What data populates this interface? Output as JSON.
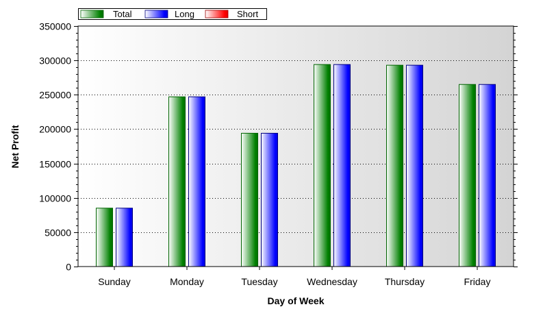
{
  "chart_data": {
    "type": "bar",
    "title": "",
    "xlabel": "Day of Week",
    "ylabel": "Net Profit",
    "categories": [
      "Sunday",
      "Monday",
      "Tuesday",
      "Wednesday",
      "Thursday",
      "Friday"
    ],
    "series": [
      {
        "name": "Total",
        "values": [
          85000,
          247000,
          194000,
          294000,
          293000,
          265000
        ],
        "color": "#008000"
      },
      {
        "name": "Long",
        "values": [
          85000,
          247000,
          194000,
          294000,
          293000,
          265000
        ],
        "color": "#0000ff"
      },
      {
        "name": "Short",
        "values": [
          0,
          0,
          0,
          0,
          0,
          0
        ],
        "color": "#ff0000"
      }
    ],
    "ylim": [
      0,
      350000
    ],
    "yticks": [
      0,
      50000,
      100000,
      150000,
      200000,
      250000,
      300000,
      350000
    ],
    "grid": true,
    "legend_position": "top-left"
  }
}
